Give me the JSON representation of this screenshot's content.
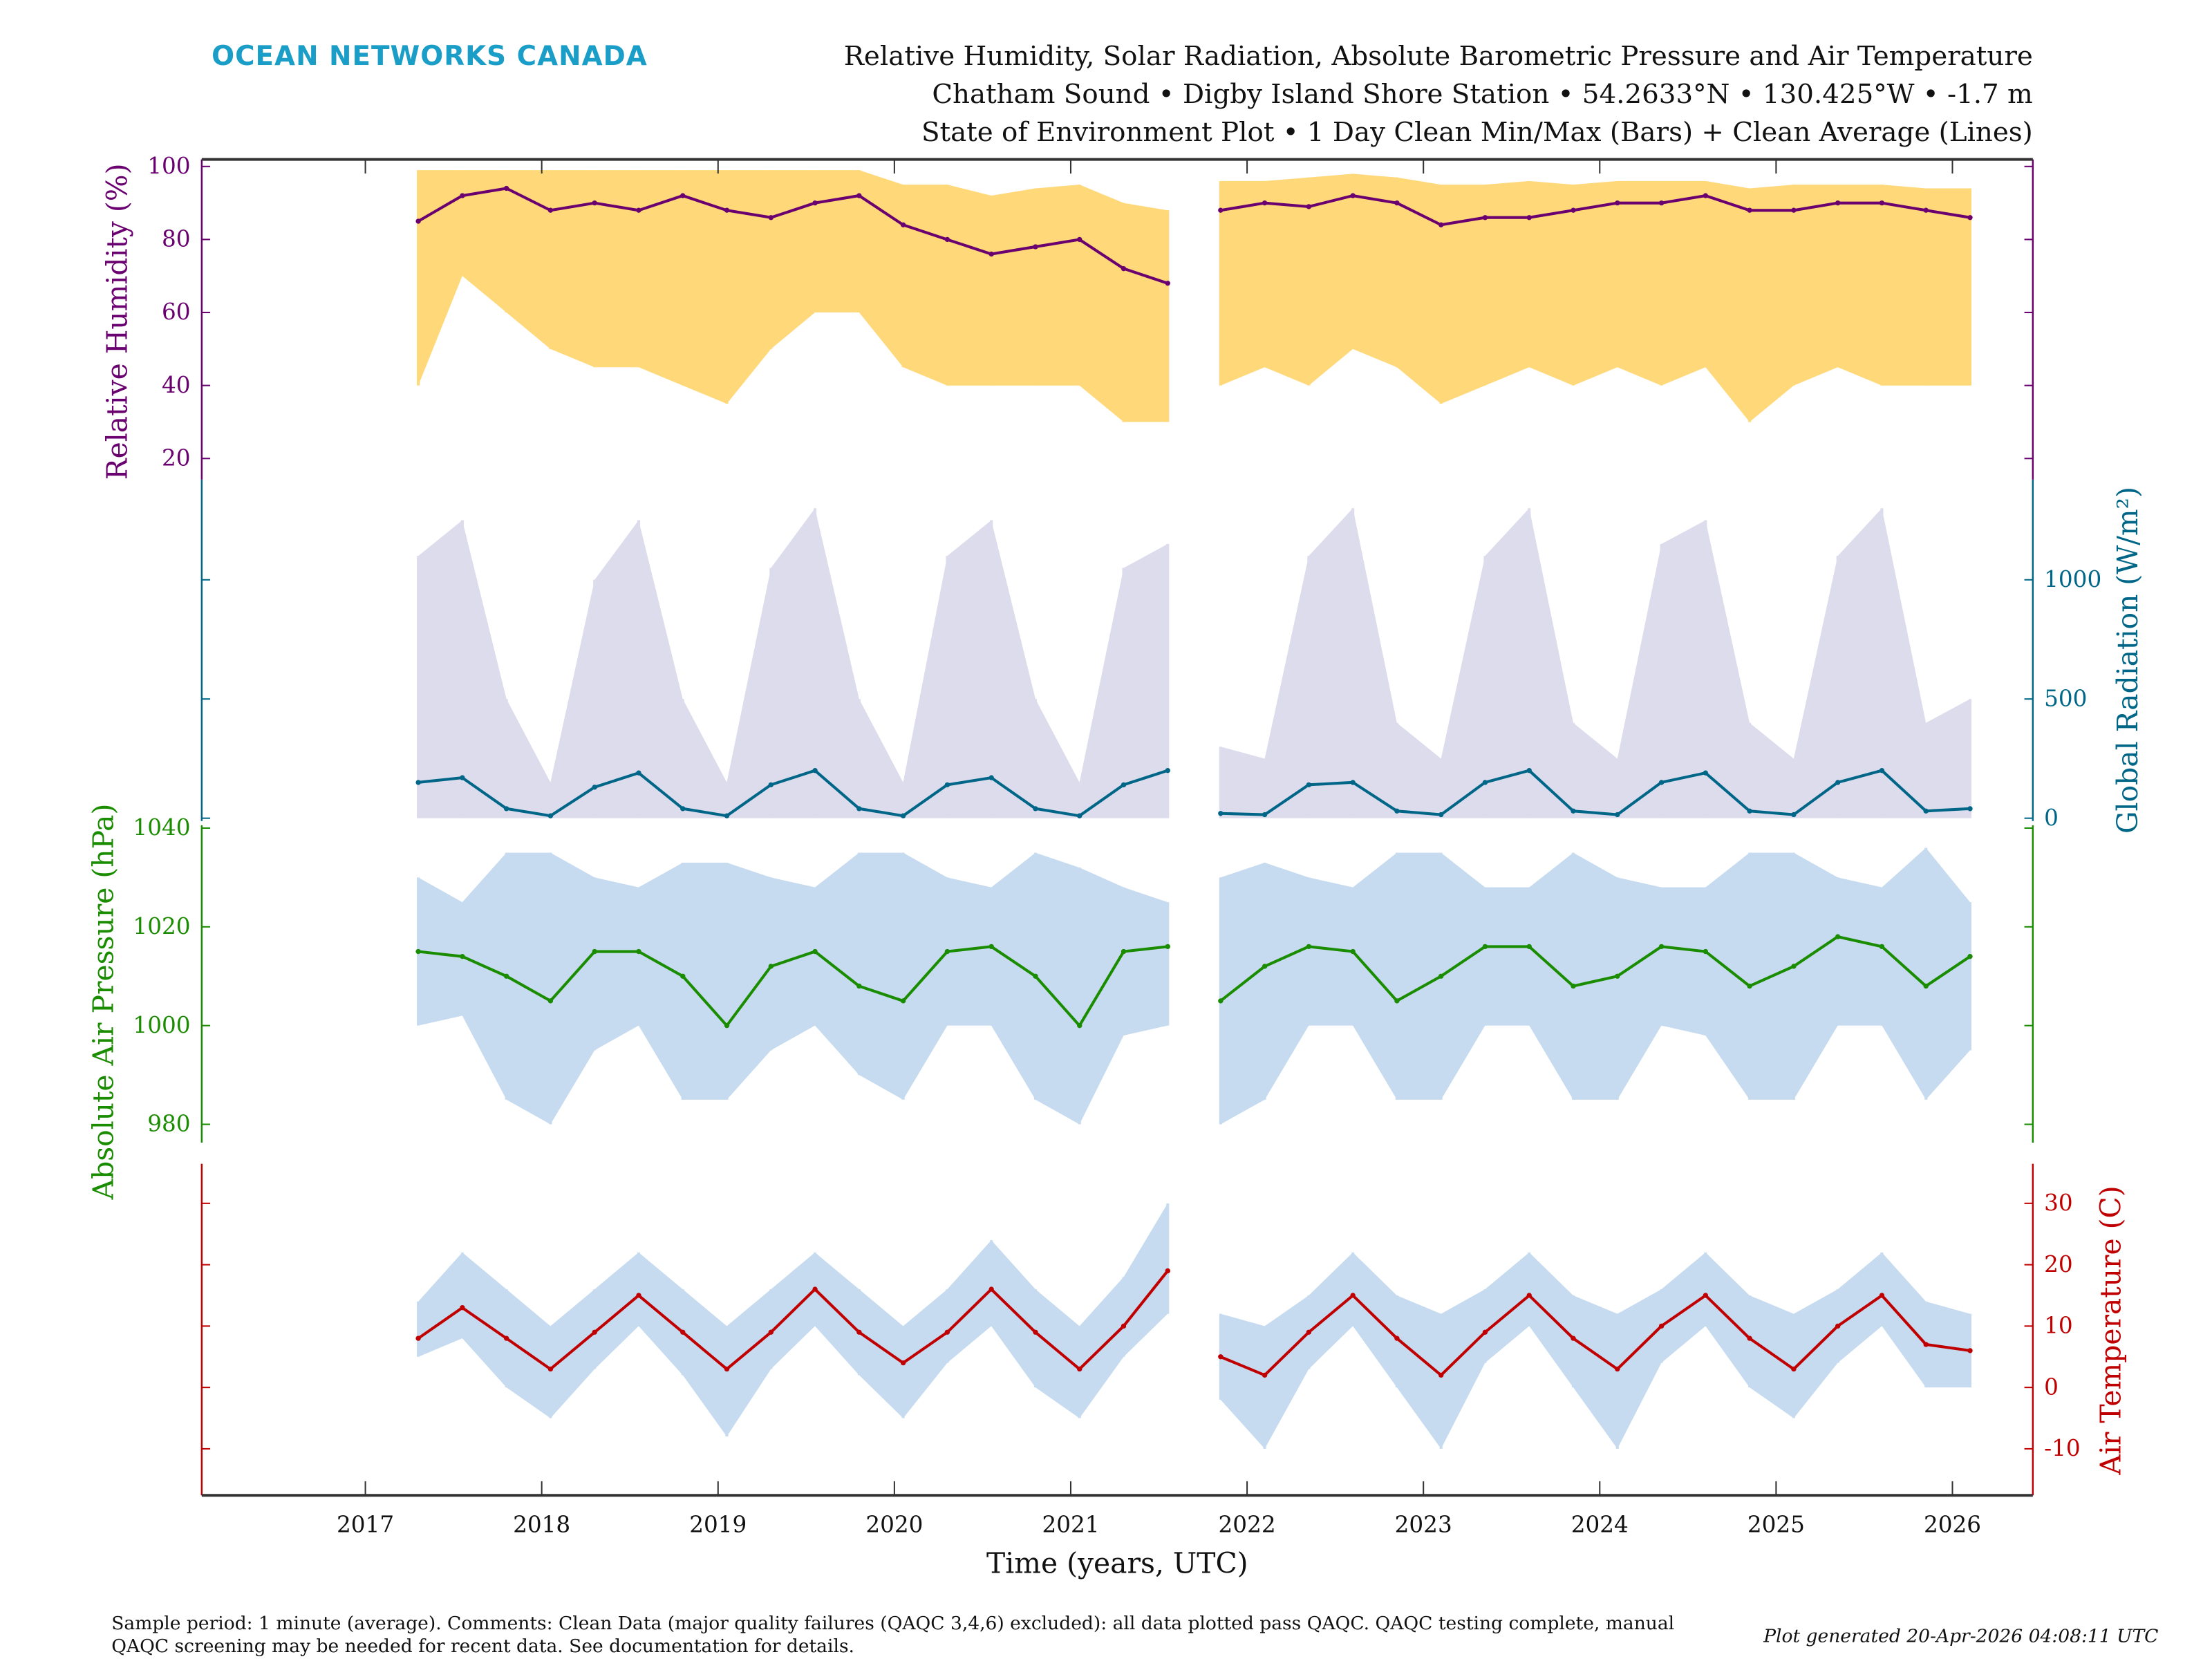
{
  "header": {
    "logo": "OCEAN NETWORKS CANADA",
    "title_line1": "Relative Humidity, Solar Radiation, Absolute Barometric Pressure and Air Temperature",
    "title_line2": "Chatham Sound • Digby Island Shore Station • 54.2633°N • 130.425°W • -1.7 m",
    "title_line3": "State of Environment Plot • 1 Day Clean Min/Max (Bars) + Clean Average (Lines)"
  },
  "footer": {
    "comment_line1": "Sample period: 1 minute (average). Comments: Clean Data (major quality failures (QAQC 3,4,6) excluded): all data plotted pass QAQC. QAQC testing complete, manual",
    "comment_line2": "QAQC screening may be needed for recent data. See documentation for details.",
    "generated": "Plot generated 20-Apr-2026 04:08:11 UTC"
  },
  "colors": {
    "logo": "#1a9ec8",
    "humidity": "#6a0070",
    "humidity_band": "#ffd87a",
    "solar": "#006688",
    "solar_band": "#dcdcec",
    "pressure": "#1a8c00",
    "pressure_band": "#c6dbef",
    "temperature": "#c00000",
    "temperature_band": "#c6dbef"
  },
  "chart_data": {
    "type": "line",
    "xlabel": "Time (years, UTC)",
    "xlim": [
      2016.07,
      2026.46
    ],
    "xticks": [
      2017,
      2018,
      2019,
      2020,
      2021,
      2022,
      2023,
      2024,
      2025,
      2026
    ],
    "xtick_labels": [
      "2017",
      "2018",
      "2019",
      "2020",
      "2021",
      "2022",
      "2023",
      "2024",
      "2025",
      "2026"
    ],
    "grid": false,
    "series": [
      {
        "key": "humidity",
        "ylabel": "Relative Humidity (%)",
        "axis_side": "left",
        "ylim": [
          20,
          100
        ],
        "yticks": [
          20,
          40,
          60,
          80,
          100
        ],
        "ytick_labels": [
          "20",
          "40",
          "60",
          "80",
          "100"
        ],
        "segments": [
          {
            "start": 2017.3,
            "step": 0.25,
            "avg": [
              85,
              92,
              94,
              88,
              90,
              88,
              92,
              88,
              86,
              90,
              92,
              84,
              80,
              76,
              78,
              80,
              72,
              68
            ],
            "min": [
              40,
              70,
              60,
              50,
              45,
              45,
              40,
              35,
              50,
              60,
              60,
              45,
              40,
              40,
              40,
              40,
              30,
              30
            ],
            "max": [
              99,
              99,
              99,
              99,
              99,
              99,
              99,
              99,
              99,
              99,
              99,
              95,
              95,
              92,
              94,
              95,
              90,
              88
            ]
          },
          {
            "start": 2021.85,
            "step": 0.25,
            "avg": [
              88,
              90,
              89,
              92,
              90,
              84,
              86,
              86,
              88,
              90,
              90,
              92,
              88,
              88,
              90,
              90,
              88,
              86
            ],
            "min": [
              40,
              45,
              40,
              50,
              45,
              35,
              40,
              45,
              40,
              45,
              40,
              45,
              30,
              40,
              45,
              40,
              40,
              40
            ],
            "max": [
              96,
              96,
              97,
              98,
              97,
              95,
              95,
              96,
              95,
              96,
              96,
              96,
              94,
              95,
              95,
              95,
              94,
              94
            ]
          }
        ]
      },
      {
        "key": "solar",
        "ylabel": "Global Radiation (W/m²)",
        "axis_side": "right",
        "ylim": [
          0,
          1000
        ],
        "yticks": [
          0,
          500,
          1000
        ],
        "ytick_labels": [
          "0",
          "500",
          "1000"
        ],
        "segments": [
          {
            "start": 2017.3,
            "step": 0.25,
            "avg": [
              150,
              170,
              40,
              10,
              130,
              190,
              40,
              10,
              140,
              200,
              40,
              10,
              140,
              170,
              40,
              10,
              140,
              200
            ],
            "min": [
              0,
              0,
              0,
              0,
              0,
              0,
              0,
              0,
              0,
              0,
              0,
              0,
              0,
              0,
              0,
              0,
              0,
              0
            ],
            "max": [
              1100,
              1250,
              500,
              150,
              1000,
              1250,
              500,
              150,
              1050,
              1300,
              500,
              150,
              1100,
              1250,
              500,
              150,
              1050,
              1150
            ]
          },
          {
            "start": 2021.85,
            "step": 0.25,
            "avg": [
              20,
              15,
              140,
              150,
              30,
              15,
              150,
              200,
              30,
              15,
              150,
              190,
              30,
              15,
              150,
              200,
              30,
              40
            ],
            "min": [
              0,
              0,
              0,
              0,
              0,
              0,
              0,
              0,
              0,
              0,
              0,
              0,
              0,
              0,
              0,
              0,
              0,
              0
            ],
            "max": [
              300,
              250,
              1100,
              1300,
              400,
              250,
              1100,
              1300,
              400,
              250,
              1150,
              1250,
              400,
              250,
              1100,
              1300,
              400,
              500
            ]
          }
        ]
      },
      {
        "key": "pressure",
        "ylabel": "Absolute Air Pressure (hPa)",
        "axis_side": "left",
        "ylim": [
          980,
          1040
        ],
        "yticks": [
          980,
          1000,
          1020,
          1040
        ],
        "ytick_labels": [
          "980",
          "1000",
          "1020",
          "1040"
        ],
        "segments": [
          {
            "start": 2017.3,
            "step": 0.25,
            "avg": [
              1015,
              1014,
              1010,
              1005,
              1015,
              1015,
              1010,
              1000,
              1012,
              1015,
              1008,
              1005,
              1015,
              1016,
              1010,
              1000,
              1015,
              1016
            ],
            "min": [
              1000,
              1002,
              985,
              980,
              995,
              1000,
              985,
              985,
              995,
              1000,
              990,
              985,
              1000,
              1000,
              985,
              980,
              998,
              1000
            ],
            "max": [
              1030,
              1025,
              1035,
              1035,
              1030,
              1028,
              1033,
              1033,
              1030,
              1028,
              1035,
              1035,
              1030,
              1028,
              1035,
              1032,
              1028,
              1025
            ]
          },
          {
            "start": 2021.85,
            "step": 0.25,
            "avg": [
              1005,
              1012,
              1016,
              1015,
              1005,
              1010,
              1016,
              1016,
              1008,
              1010,
              1016,
              1015,
              1008,
              1012,
              1018,
              1016,
              1008,
              1014
            ],
            "min": [
              980,
              985,
              1000,
              1000,
              985,
              985,
              1000,
              1000,
              985,
              985,
              1000,
              998,
              985,
              985,
              1000,
              1000,
              985,
              995
            ],
            "max": [
              1030,
              1033,
              1030,
              1028,
              1035,
              1035,
              1028,
              1028,
              1035,
              1030,
              1028,
              1028,
              1035,
              1035,
              1030,
              1028,
              1036,
              1025
            ]
          }
        ]
      },
      {
        "key": "temperature",
        "ylabel": "Air Temperature (C)",
        "axis_side": "right",
        "ylim": [
          -10,
          30
        ],
        "yticks": [
          -10,
          0,
          10,
          20,
          30
        ],
        "ytick_labels": [
          "-10",
          "0",
          "10",
          "20",
          "30"
        ],
        "segments": [
          {
            "start": 2017.3,
            "step": 0.25,
            "avg": [
              8,
              13,
              8,
              3,
              9,
              15,
              9,
              3,
              9,
              16,
              9,
              4,
              9,
              16,
              9,
              3,
              10,
              19
            ],
            "min": [
              5,
              8,
              0,
              -5,
              3,
              10,
              2,
              -8,
              3,
              10,
              2,
              -5,
              4,
              10,
              0,
              -5,
              5,
              12
            ],
            "max": [
              14,
              22,
              16,
              10,
              16,
              22,
              16,
              10,
              16,
              22,
              16,
              10,
              16,
              24,
              16,
              10,
              18,
              30
            ]
          },
          {
            "start": 2021.85,
            "step": 0.25,
            "avg": [
              5,
              2,
              9,
              15,
              8,
              2,
              9,
              15,
              8,
              3,
              10,
              15,
              8,
              3,
              10,
              15,
              7,
              6
            ],
            "min": [
              -2,
              -10,
              3,
              10,
              0,
              -10,
              4,
              10,
              0,
              -10,
              4,
              10,
              0,
              -5,
              4,
              10,
              0,
              0
            ],
            "max": [
              12,
              10,
              15,
              22,
              15,
              12,
              16,
              22,
              15,
              12,
              16,
              22,
              15,
              12,
              16,
              22,
              14,
              12
            ]
          }
        ]
      }
    ]
  }
}
